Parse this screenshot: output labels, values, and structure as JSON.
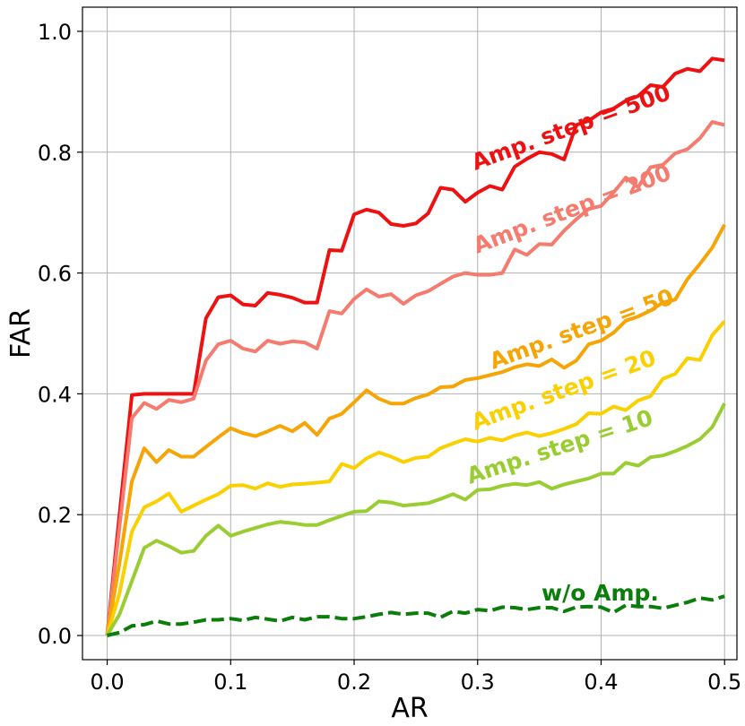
{
  "chart_data": {
    "type": "line",
    "title": "",
    "xlabel": "AR",
    "ylabel": "FAR",
    "xlim": [
      -0.02,
      0.51
    ],
    "ylim": [
      -0.04,
      1.04
    ],
    "xticks": [
      0.0,
      0.1,
      0.2,
      0.3,
      0.4,
      0.5
    ],
    "xtick_labels": [
      "0.0",
      "0.1",
      "0.2",
      "0.3",
      "0.4",
      "0.5"
    ],
    "yticks": [
      0.0,
      0.2,
      0.4,
      0.6,
      0.8,
      1.0
    ],
    "ytick_labels": [
      "0.0",
      "0.2",
      "0.4",
      "0.6",
      "0.8",
      "1.0"
    ],
    "grid": true,
    "legend": "inline labels",
    "x": [
      0.0,
      0.01,
      0.02,
      0.03,
      0.04,
      0.05,
      0.06,
      0.07,
      0.08,
      0.09,
      0.1,
      0.11,
      0.12,
      0.13,
      0.14,
      0.15,
      0.16,
      0.17,
      0.18,
      0.19,
      0.2,
      0.21,
      0.22,
      0.23,
      0.24,
      0.25,
      0.26,
      0.27,
      0.28,
      0.29,
      0.3,
      0.31,
      0.32,
      0.33,
      0.34,
      0.35,
      0.36,
      0.37,
      0.38,
      0.39,
      0.4,
      0.41,
      0.42,
      0.43,
      0.44,
      0.45,
      0.46,
      0.47,
      0.48,
      0.49,
      0.5
    ],
    "series": [
      {
        "name": "Amp. step = 500",
        "color": "#ee1111",
        "dashed": false,
        "label_angle": -20,
        "values": [
          0.0,
          0.2,
          0.398,
          0.4,
          0.4,
          0.4,
          0.4,
          0.4,
          0.525,
          0.56,
          0.563,
          0.548,
          0.546,
          0.567,
          0.564,
          0.559,
          0.551,
          0.551,
          0.638,
          0.637,
          0.697,
          0.705,
          0.7,
          0.681,
          0.678,
          0.682,
          0.699,
          0.741,
          0.738,
          0.718,
          0.733,
          0.744,
          0.738,
          0.776,
          0.789,
          0.8,
          0.797,
          0.788,
          0.845,
          0.852,
          0.866,
          0.872,
          0.885,
          0.893,
          0.911,
          0.908,
          0.93,
          0.938,
          0.934,
          0.955,
          0.952
        ]
      },
      {
        "name": "Amp. step = 200",
        "color": "#f47b6e",
        "dashed": false,
        "label_angle": -21,
        "values": [
          0.0,
          0.18,
          0.36,
          0.385,
          0.375,
          0.39,
          0.386,
          0.392,
          0.455,
          0.482,
          0.488,
          0.475,
          0.47,
          0.488,
          0.483,
          0.487,
          0.485,
          0.475,
          0.537,
          0.533,
          0.557,
          0.573,
          0.561,
          0.565,
          0.549,
          0.563,
          0.57,
          0.582,
          0.594,
          0.6,
          0.597,
          0.597,
          0.6,
          0.639,
          0.63,
          0.648,
          0.647,
          0.67,
          0.689,
          0.706,
          0.711,
          0.733,
          0.758,
          0.742,
          0.775,
          0.779,
          0.798,
          0.805,
          0.823,
          0.85,
          0.845
        ]
      },
      {
        "name": "Amp. step = 50",
        "color": "#f5a506",
        "dashed": false,
        "label_angle": -20,
        "values": [
          0.0,
          0.12,
          0.255,
          0.31,
          0.287,
          0.307,
          0.296,
          0.296,
          0.312,
          0.328,
          0.343,
          0.335,
          0.33,
          0.338,
          0.347,
          0.338,
          0.352,
          0.332,
          0.359,
          0.367,
          0.386,
          0.406,
          0.392,
          0.384,
          0.384,
          0.393,
          0.399,
          0.411,
          0.412,
          0.423,
          0.426,
          0.431,
          0.436,
          0.444,
          0.449,
          0.446,
          0.457,
          0.443,
          0.455,
          0.482,
          0.488,
          0.501,
          0.521,
          0.528,
          0.538,
          0.551,
          0.556,
          0.59,
          0.615,
          0.642,
          0.68
        ]
      },
      {
        "name": "Amp. step = 20",
        "color": "#fad000",
        "dashed": false,
        "label_angle": -20,
        "values": [
          0.0,
          0.07,
          0.172,
          0.212,
          0.222,
          0.235,
          0.205,
          0.215,
          0.225,
          0.234,
          0.248,
          0.249,
          0.243,
          0.252,
          0.246,
          0.25,
          0.251,
          0.253,
          0.255,
          0.284,
          0.277,
          0.293,
          0.303,
          0.296,
          0.287,
          0.294,
          0.296,
          0.31,
          0.318,
          0.325,
          0.321,
          0.327,
          0.323,
          0.331,
          0.336,
          0.33,
          0.335,
          0.342,
          0.35,
          0.368,
          0.367,
          0.379,
          0.373,
          0.389,
          0.396,
          0.425,
          0.433,
          0.459,
          0.456,
          0.497,
          0.52
        ]
      },
      {
        "name": "Amp. step = 10",
        "color": "#9acd32",
        "dashed": false,
        "label_angle": -18,
        "values": [
          0.0,
          0.035,
          0.09,
          0.145,
          0.157,
          0.148,
          0.137,
          0.14,
          0.165,
          0.182,
          0.165,
          0.172,
          0.178,
          0.184,
          0.188,
          0.186,
          0.183,
          0.183,
          0.191,
          0.198,
          0.205,
          0.206,
          0.222,
          0.22,
          0.215,
          0.217,
          0.219,
          0.226,
          0.234,
          0.225,
          0.241,
          0.242,
          0.248,
          0.251,
          0.249,
          0.254,
          0.243,
          0.25,
          0.255,
          0.26,
          0.268,
          0.268,
          0.286,
          0.281,
          0.295,
          0.298,
          0.305,
          0.314,
          0.325,
          0.345,
          0.384
        ]
      },
      {
        "name": "w/o Amp.",
        "color": "#0a7d0a",
        "dashed": true,
        "label_angle": 0,
        "values": [
          0.0,
          0.005,
          0.016,
          0.018,
          0.024,
          0.019,
          0.019,
          0.022,
          0.026,
          0.026,
          0.028,
          0.025,
          0.03,
          0.027,
          0.024,
          0.03,
          0.026,
          0.031,
          0.031,
          0.028,
          0.028,
          0.031,
          0.035,
          0.038,
          0.035,
          0.037,
          0.037,
          0.03,
          0.04,
          0.037,
          0.043,
          0.041,
          0.047,
          0.046,
          0.043,
          0.046,
          0.046,
          0.04,
          0.047,
          0.048,
          0.047,
          0.038,
          0.05,
          0.048,
          0.048,
          0.045,
          0.05,
          0.055,
          0.062,
          0.059,
          0.065
        ]
      }
    ]
  }
}
